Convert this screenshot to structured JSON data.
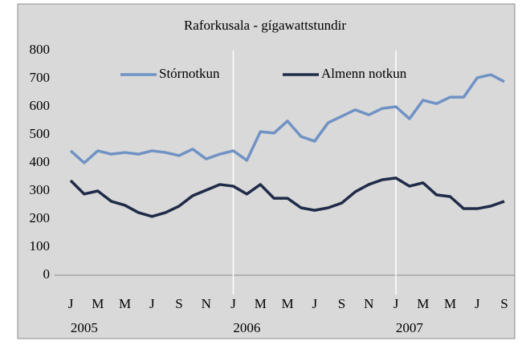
{
  "chart_data": {
    "type": "line",
    "title": "Raforkusala - gígawattstundir",
    "categories": [
      "J",
      null,
      "M",
      null,
      "M",
      null,
      "J",
      null,
      "S",
      null,
      "N",
      null,
      "J",
      null,
      "M",
      null,
      "M",
      null,
      "J",
      null,
      "S",
      null,
      "N",
      null,
      "J",
      null,
      "M",
      null,
      "M",
      null,
      "J",
      null,
      "S"
    ],
    "years": [
      "2005",
      "2006",
      "2007"
    ],
    "series": [
      {
        "name": "Stórnotkun",
        "color": "#7092c4",
        "values": [
          443,
          400,
          443,
          431,
          437,
          431,
          443,
          437,
          426,
          449,
          414,
          431,
          443,
          409,
          511,
          506,
          549,
          494,
          477,
          543,
          566,
          589,
          571,
          594,
          600,
          557,
          623,
          611,
          634,
          634,
          703,
          714,
          689
        ]
      },
      {
        "name": "Almenn notkun",
        "color": "#1f2b48",
        "values": [
          337,
          289,
          300,
          263,
          249,
          223,
          209,
          223,
          246,
          283,
          303,
          323,
          317,
          289,
          323,
          274,
          274,
          240,
          231,
          240,
          257,
          297,
          323,
          340,
          346,
          317,
          329,
          286,
          280,
          237,
          237,
          246,
          263
        ]
      }
    ],
    "ylim": [
      0,
      800
    ],
    "yticks": [
      0,
      100,
      200,
      300,
      400,
      500,
      600,
      700,
      800
    ],
    "legend": "top"
  }
}
